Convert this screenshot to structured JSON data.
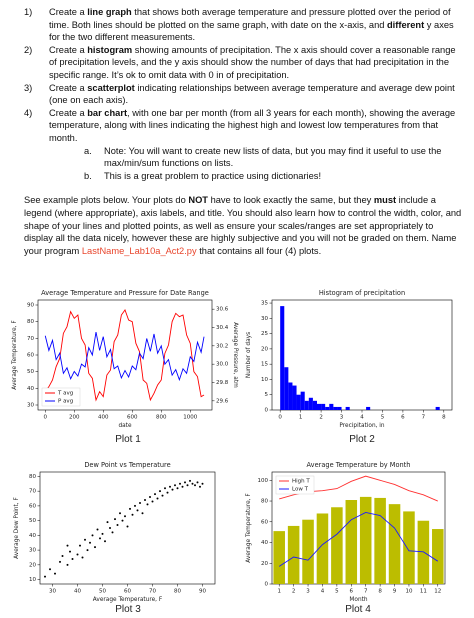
{
  "instructions": [
    {
      "number": "1)",
      "parts": [
        "Create a ",
        "line graph",
        " that shows both average temperature and pressure plotted over the period of time. Both lines should be plotted on the same graph, with date on the x-axis, and ",
        "different",
        " y axes for the two different measurements."
      ]
    },
    {
      "number": "2)",
      "parts": [
        "Create a ",
        "histogram",
        " showing amounts of precipitation. The x axis should cover a reasonable range of precipitation levels, and the y axis should show the number of days that had precipitation in the specific range. It’s ok to omit data with 0 in of precipitation."
      ]
    },
    {
      "number": "3)",
      "parts": [
        "Create a ",
        "scatterplot",
        " indicating relationships between average temperature and average dew point (one on each axis)."
      ]
    },
    {
      "number": "4)",
      "parts": [
        "Create a ",
        "bar chart",
        ", with one bar per month (from all 3 years for each month), showing the average temperature, along with lines indicating the highest high and lowest low temperatures from that month."
      ]
    }
  ],
  "notes": [
    {
      "number": "a.",
      "text": "Note: You will want to create new lists of data, but you may find it useful to use the max/min/sum functions on lists."
    },
    {
      "number": "b.",
      "text": "This is a great problem to practice using dictionaries!"
    }
  ],
  "paragraph": [
    "See example plots below. Your plots do ",
    "NOT",
    " have to look exactly the same, but they ",
    "must",
    " include a legend (where appropriate), axis labels, and title. You should also learn how to control the width, color, and shape of your lines and plotted points, as well as ensure your scales/ranges are set appropriately to display all the data nicely, however these are highly subjective and you will not be graded on them. Name your program ",
    "LastName_Lab10a_Act2.py",
    " that contains all four (4) plots."
  ],
  "plots": [
    {
      "type": "line",
      "title": "Average Temperature and Pressure for Date Range",
      "caption": "Plot 1",
      "xlabel": "date",
      "ylabel": "Average Temperature, F",
      "y2label": "Average Pressure, atm",
      "xlim": [
        -50,
        1150
      ],
      "xticks": [
        0,
        200,
        400,
        600,
        800,
        1000
      ],
      "ylim": [
        27,
        93
      ],
      "yticks": [
        30,
        40,
        50,
        60,
        70,
        80,
        90
      ],
      "y2lim": [
        29.5,
        30.7
      ],
      "y2ticks": [
        29.6,
        29.8,
        {
          "value": 30,
          "label": "30.0"
        },
        30.2,
        30.4,
        30.6
      ],
      "legend": "lower left",
      "x": [
        0,
        25,
        50,
        75,
        100,
        125,
        150,
        175,
        200,
        225,
        250,
        275,
        300,
        325,
        350,
        375,
        400,
        425,
        450,
        475,
        500,
        525,
        550,
        575,
        600,
        625,
        650,
        675,
        700,
        725,
        750,
        775,
        800,
        825,
        850,
        875,
        900,
        925,
        950,
        975,
        1000,
        1025,
        1050,
        1075,
        1095
      ],
      "series": [
        {
          "name": "T avg",
          "color": "#ff0000",
          "values": [
            38,
            41,
            45,
            53,
            58,
            73,
            77,
            86,
            82,
            84,
            70,
            66,
            49,
            46,
            33,
            38,
            35,
            48,
            51,
            68,
            72,
            84,
            87,
            81,
            80,
            67,
            62,
            45,
            43,
            33,
            37,
            42,
            45,
            61,
            66,
            80,
            85,
            83,
            84,
            72,
            67,
            50,
            47,
            35,
            36
          ]
        },
        {
          "name": "P avg",
          "color": "#0000ff",
          "axis": "y2",
          "values": [
            30.31,
            30.15,
            30.26,
            30.05,
            30.12,
            29.9,
            29.96,
            29.84,
            29.92,
            29.87,
            30.0,
            29.97,
            30.18,
            30.1,
            30.35,
            30.15,
            30.3,
            30.08,
            30.16,
            29.95,
            29.98,
            29.85,
            29.93,
            29.86,
            29.98,
            29.94,
            30.12,
            30.06,
            30.28,
            30.14,
            30.33,
            30.12,
            30.2,
            30.0,
            30.05,
            29.88,
            29.94,
            29.83,
            29.95,
            29.9,
            30.08,
            30.03,
            30.24,
            30.13,
            30.3
          ]
        }
      ]
    },
    {
      "type": "histogram",
      "title": "Histogram of precipitation",
      "caption": "Plot 2",
      "xlabel": "Precipitation, in",
      "ylabel": "Number of days",
      "color": "#0000ff",
      "xlim": [
        -0.4,
        8.4
      ],
      "xticks": [
        0,
        1,
        2,
        3,
        4,
        5,
        6,
        7,
        8
      ],
      "ylim": [
        0,
        36
      ],
      "yticks": [
        0,
        5,
        10,
        15,
        20,
        25,
        30,
        35
      ],
      "bins": [
        0,
        0.2,
        0.4,
        0.6,
        0.8,
        1,
        1.2,
        1.4,
        1.6,
        1.8,
        2,
        2.2,
        2.4,
        2.6,
        2.8,
        3,
        3.2,
        3.4,
        3.6,
        3.8,
        4,
        4.2,
        4.4,
        4.6,
        4.8,
        5,
        5.2,
        5.4,
        5.6,
        5.8,
        6,
        6.2,
        6.4,
        6.6,
        6.8,
        7,
        7.2,
        7.4,
        7.6,
        7.8,
        8
      ],
      "values": [
        34,
        14,
        9,
        8,
        5,
        6,
        3,
        4,
        3,
        2,
        2,
        1,
        2,
        1,
        1,
        0,
        1,
        0,
        0,
        0,
        0,
        1,
        0,
        0,
        0,
        0,
        0,
        0,
        0,
        0,
        0,
        0,
        0,
        0,
        0,
        0,
        0,
        0,
        1,
        0
      ]
    },
    {
      "type": "scatter",
      "title": "Dew Point vs Temperature",
      "caption": "Plot 3",
      "xlabel": "Average Temperature, F",
      "ylabel": "Average Dew Point, F",
      "color": "#000000",
      "xlim": [
        25,
        95
      ],
      "xticks": [
        30,
        40,
        50,
        60,
        70,
        80,
        90
      ],
      "ylim": [
        7,
        83
      ],
      "yticks": [
        10,
        20,
        30,
        40,
        50,
        60,
        70,
        80
      ],
      "x": [
        27,
        29,
        31,
        33,
        34,
        36,
        37,
        38,
        40,
        41,
        42,
        43,
        44,
        45,
        46,
        47,
        48,
        49,
        50,
        51,
        52,
        53,
        54,
        55,
        56,
        57,
        58,
        59,
        60,
        61,
        62,
        63,
        64,
        65,
        66,
        67,
        68,
        69,
        70,
        71,
        72,
        73,
        74,
        75,
        76,
        77,
        78,
        79,
        80,
        81,
        82,
        83,
        84,
        85,
        86,
        87,
        88,
        89,
        90,
        36
      ],
      "values": [
        12,
        17,
        14,
        22,
        26,
        20,
        29,
        24,
        27,
        33,
        25,
        37,
        30,
        35,
        40,
        32,
        44,
        38,
        41,
        36,
        49,
        45,
        42,
        51,
        47,
        55,
        50,
        53,
        46,
        58,
        54,
        60,
        57,
        62,
        55,
        64,
        61,
        66,
        63,
        68,
        65,
        70,
        67,
        72,
        69,
        73,
        71,
        74,
        72,
        75,
        73,
        76,
        74,
        77,
        75,
        74,
        76,
        73,
        75,
        33
      ]
    },
    {
      "type": "bar",
      "title": "Average Temperature by Month",
      "caption": "Plot 4",
      "xlabel": "Month",
      "ylabel": "Average Temperature, F",
      "color": "#bcbd00",
      "categories": [
        "1",
        "2",
        "3",
        "4",
        "5",
        "6",
        "7",
        "8",
        "9",
        "10",
        "11",
        "12"
      ],
      "ylim": [
        0,
        108
      ],
      "yticks": [
        0,
        20,
        40,
        60,
        80,
        100
      ],
      "legend": "upper left",
      "values": [
        51,
        56,
        62,
        68,
        74,
        81,
        84,
        83,
        77,
        70,
        61,
        53
      ],
      "series": [
        {
          "name": "High T",
          "color": "#ff3030",
          "values": [
            82,
            86,
            89,
            90,
            92,
            99,
            104,
            100,
            96,
            90,
            86,
            80
          ]
        },
        {
          "name": "Low T",
          "color": "#1a1aff",
          "values": [
            17,
            26,
            23,
            38,
            48,
            62,
            69,
            66,
            54,
            32,
            31,
            22
          ]
        }
      ]
    }
  ]
}
